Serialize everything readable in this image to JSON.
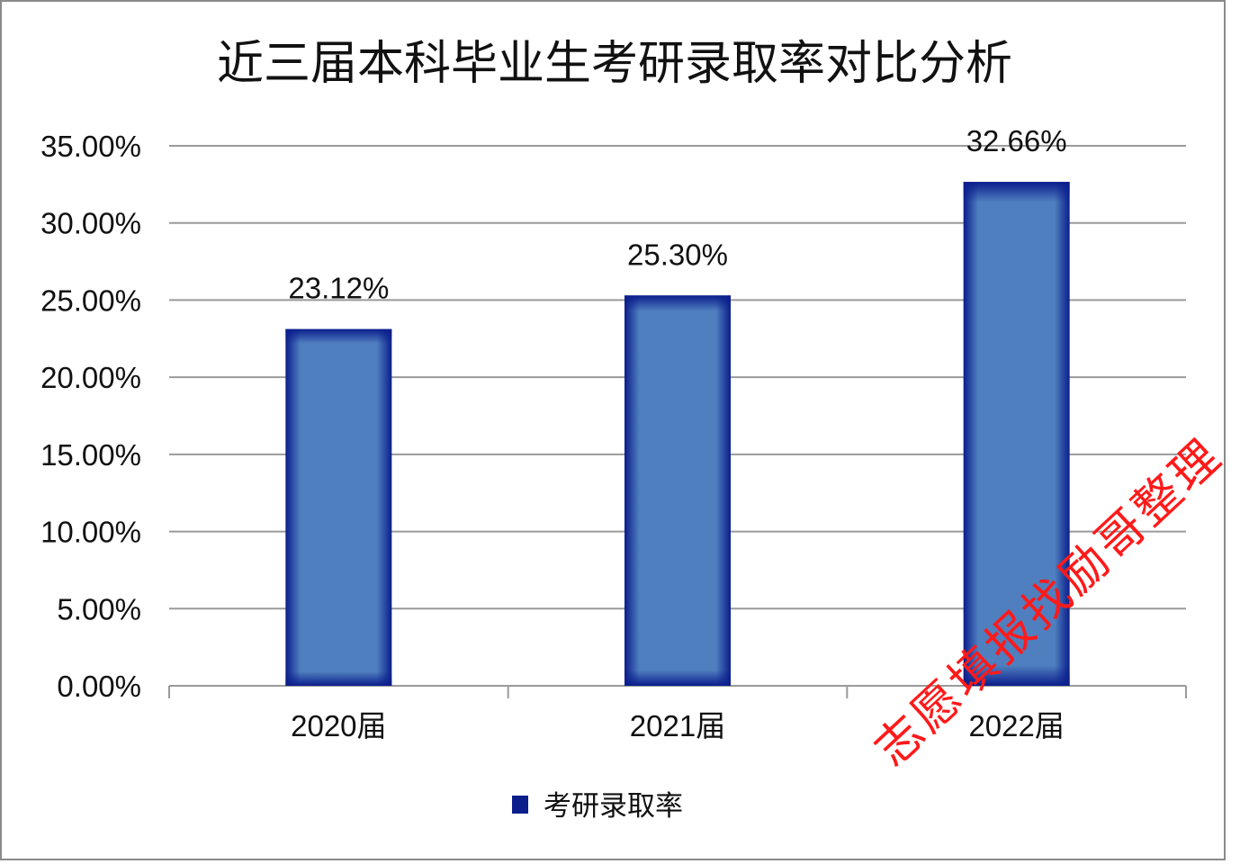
{
  "chart_data": {
    "type": "bar",
    "title": "近三届本科毕业生考研录取率对比分析",
    "categories": [
      "2020届",
      "2021届",
      "2022届"
    ],
    "series": [
      {
        "name": "考研录取率",
        "values": [
          23.12,
          25.3,
          32.66
        ],
        "color": "#4f7fbf",
        "edge_color": "#0b1e8c"
      }
    ],
    "data_labels": [
      "23.12%",
      "25.30%",
      "32.66%"
    ],
    "y_ticks": [
      "0.00%",
      "5.00%",
      "10.00%",
      "15.00%",
      "20.00%",
      "25.00%",
      "30.00%",
      "35.00%"
    ],
    "ylim": [
      0,
      35
    ],
    "y_unit": "%",
    "grid": true,
    "legend_position": "bottom"
  },
  "watermark": {
    "text": "志愿填报找励哥整理",
    "color": "#ff1a1a"
  }
}
